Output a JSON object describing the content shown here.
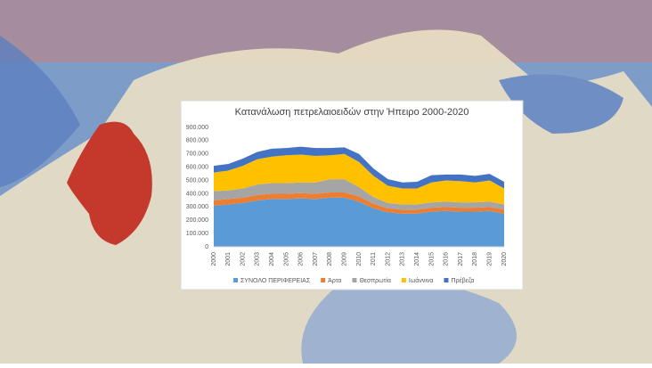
{
  "chart_data": {
    "type": "stacked-area",
    "title": "Κατανάλωση πετρελαιοειδών στην Ήπειρο 2000-2020",
    "categories": [
      "2000",
      "2001",
      "2002",
      "2003",
      "2004",
      "2005",
      "2006",
      "2007",
      "2008",
      "2009",
      "2010",
      "2011",
      "2012",
      "2013",
      "2014",
      "2015",
      "2016",
      "2017",
      "2018",
      "2019",
      "2020"
    ],
    "series": [
      {
        "name": "ΣΥΝΟΛΟ ΠΕΡΙΦΕΡΕΙΑΣ",
        "color": "#5b9bd5",
        "values": [
          310000,
          320000,
          330000,
          350000,
          360000,
          360000,
          365000,
          360000,
          370000,
          370000,
          340000,
          290000,
          260000,
          250000,
          250000,
          265000,
          270000,
          265000,
          265000,
          270000,
          250000
        ]
      },
      {
        "name": "Άρτα",
        "color": "#ed7d31",
        "values": [
          40000,
          40000,
          40000,
          40000,
          40000,
          40000,
          40000,
          40000,
          40000,
          40000,
          40000,
          35000,
          30000,
          30000,
          30000,
          30000,
          30000,
          30000,
          30000,
          30000,
          30000
        ]
      },
      {
        "name": "Θεσπρωτία",
        "color": "#a5a5a5",
        "values": [
          70000,
          65000,
          70000,
          80000,
          80000,
          80000,
          80000,
          85000,
          100000,
          100000,
          70000,
          50000,
          40000,
          40000,
          40000,
          40000,
          40000,
          40000,
          40000,
          40000,
          40000
        ]
      },
      {
        "name": "Ιωάννινα",
        "color": "#ffc000",
        "values": [
          140000,
          150000,
          170000,
          190000,
          200000,
          210000,
          210000,
          200000,
          180000,
          190000,
          190000,
          160000,
          130000,
          120000,
          120000,
          150000,
          160000,
          160000,
          150000,
          160000,
          120000
        ]
      },
      {
        "name": "Πρέβεζα",
        "color": "#4472c4",
        "values": [
          50000,
          50000,
          55000,
          55000,
          60000,
          55000,
          60000,
          60000,
          55000,
          50000,
          60000,
          55000,
          50000,
          45000,
          50000,
          55000,
          45000,
          50000,
          50000,
          50000,
          50000
        ]
      }
    ],
    "ylim": [
      0,
      900000
    ],
    "yticks": [
      0,
      {
        "value": 100000,
        "label": "100.000"
      },
      {
        "value": 200000,
        "label": "200.000"
      },
      {
        "value": 300000,
        "label": "300.000"
      },
      {
        "value": 400000,
        "label": "400.000"
      },
      {
        "value": 500000,
        "label": "500.000"
      },
      {
        "value": 600000,
        "label": "600.000"
      },
      {
        "value": 700000,
        "label": "700.000"
      },
      {
        "value": 800000,
        "label": "800.000"
      },
      {
        "value": 900000,
        "label": "900.000"
      }
    ],
    "grid": false
  }
}
